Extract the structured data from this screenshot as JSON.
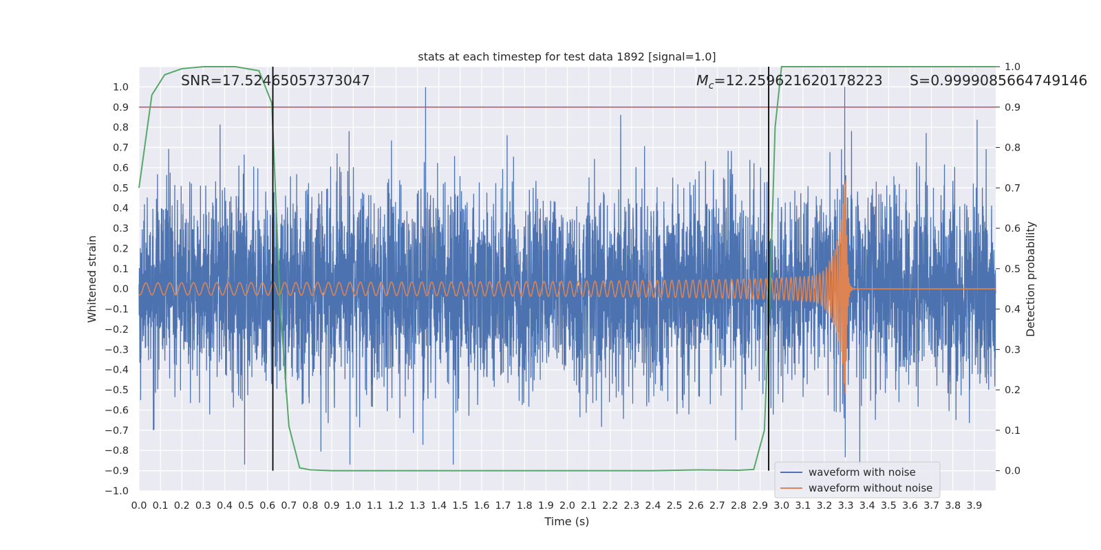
{
  "chart_data": {
    "type": "line",
    "title": "stats at each timestep for test data 1892 [signal=1.0]",
    "xlabel": "Time (s)",
    "ylabel": "Whitened strain",
    "y2label": "Detection probability",
    "xlim": [
      0.0,
      4.0
    ],
    "ylim": [
      -1.0,
      1.1
    ],
    "y2lim": [
      -0.05,
      1.0
    ],
    "x_ticks": [
      "0.0",
      "0.1",
      "0.2",
      "0.3",
      "0.4",
      "0.5",
      "0.6",
      "0.7",
      "0.8",
      "0.9",
      "1.0",
      "1.1",
      "1.2",
      "1.3",
      "1.4",
      "1.5",
      "1.6",
      "1.7",
      "1.8",
      "1.9",
      "2.0",
      "2.1",
      "2.2",
      "2.3",
      "2.4",
      "2.5",
      "2.6",
      "2.7",
      "2.8",
      "2.9",
      "3.0",
      "3.1",
      "3.2",
      "3.3",
      "3.4",
      "3.5",
      "3.6",
      "3.7",
      "3.8",
      "3.9"
    ],
    "y_ticks": [
      "−1.0",
      "−0.9",
      "−0.8",
      "−0.7",
      "−0.6",
      "−0.5",
      "−0.4",
      "−0.3",
      "−0.2",
      "−0.1",
      "0.0",
      "0.1",
      "0.2",
      "0.3",
      "0.4",
      "0.5",
      "0.6",
      "0.7",
      "0.8",
      "0.9",
      "1.0"
    ],
    "y2_ticks": [
      "0.0",
      "0.1",
      "0.2",
      "0.3",
      "0.4",
      "0.5",
      "0.6",
      "0.7",
      "0.8",
      "0.9",
      "1.0"
    ],
    "grid": true,
    "legend_position": "bottom-right",
    "series": [
      {
        "name": "waveform with noise",
        "color": "#4c72b0",
        "axis": "left",
        "description": "noisy whitened strain, roughly within -0.85 to 0.85 with peaks near 1.0 around t=3.3 s",
        "amplitude_range": [
          -0.87,
          1.0
        ]
      },
      {
        "name": "waveform without noise",
        "color": "#dd8452",
        "axis": "left",
        "description": "clean chirp signal, amplitude growing from ~0.03 to ~0.57 at merger near t=3.3 s, then ringdown to zero",
        "chirp_start_amplitude": 0.03,
        "chirp_peak_amplitude": 0.57,
        "merger_time": 3.3
      },
      {
        "name": "detection probability",
        "color": "#55a868",
        "axis": "right",
        "x": [
          0.0,
          0.06,
          0.12,
          0.2,
          0.3,
          0.45,
          0.56,
          0.62,
          0.66,
          0.7,
          0.75,
          0.8,
          0.9,
          1.2,
          1.6,
          2.0,
          2.4,
          2.6,
          2.8,
          2.87,
          2.92,
          2.95,
          2.97,
          3.0,
          3.5,
          4.0
        ],
        "y": [
          0.7,
          0.93,
          0.98,
          0.995,
          1.0,
          1.0,
          0.99,
          0.91,
          0.4,
          0.11,
          0.007,
          0.002,
          0.0,
          0.0,
          0.0,
          0.0,
          0.0,
          0.002,
          0.001,
          0.003,
          0.1,
          0.5,
          0.85,
          1.0,
          1.0,
          1.0
        ]
      }
    ],
    "threshold": {
      "value": 0.9,
      "axis": "right",
      "color": "#c44e52"
    },
    "vlines": [
      {
        "x": 0.625,
        "color": "#000000"
      },
      {
        "x": 2.94,
        "color": "#000000"
      }
    ],
    "annotations": {
      "snr": "SNR=17.52465057373047",
      "mc_symbol": "M",
      "mc_sub": "c",
      "mc_value": "=12.259621620178223",
      "s": "S=0.9999085664749146"
    },
    "legend": [
      "waveform with noise",
      "waveform without noise"
    ]
  }
}
